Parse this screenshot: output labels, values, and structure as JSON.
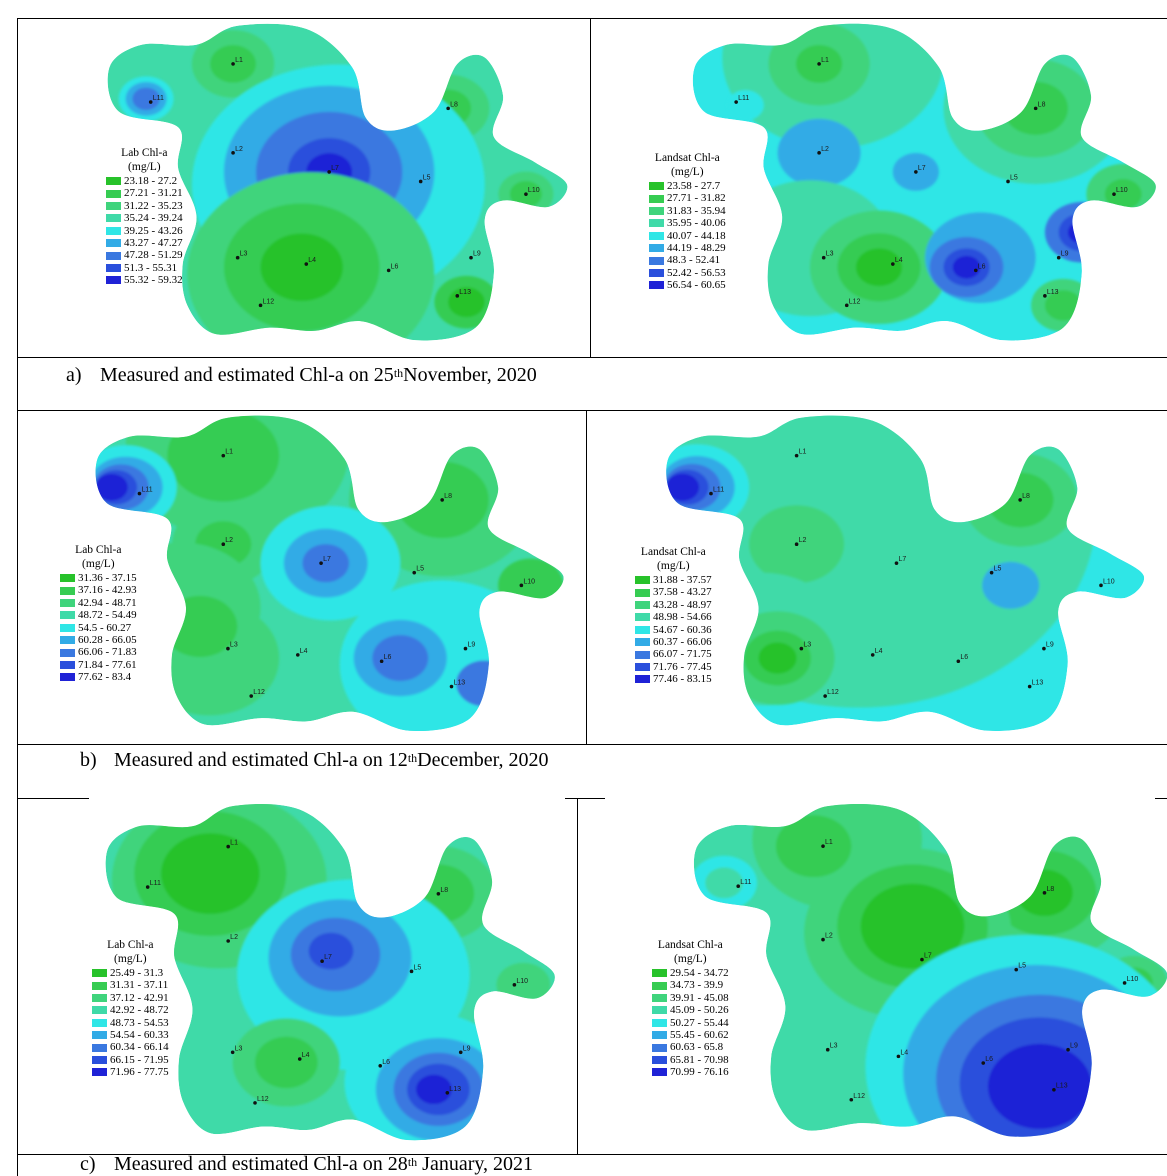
{
  "figure": {
    "captions": [
      {
        "marker": "a)",
        "pre": "Measured and estimated Chl-a  on 25",
        "sup": "th",
        "post": "November, 2020"
      },
      {
        "marker": "b)",
        "pre": "Measured and estimated Chl-a  on 12",
        "sup": "th",
        "post": "December, 2020"
      },
      {
        "marker": "c)",
        "pre": "Measured and estimated Chl-a  on 28",
        "sup": "th",
        "post": " January, 2021"
      }
    ],
    "station_labels": [
      "L1",
      "L2",
      "L3",
      "L4",
      "L5",
      "L6",
      "L7",
      "L8",
      "L9",
      "L10",
      "L11",
      "L12",
      "L13"
    ],
    "colors": [
      "#27c22a",
      "#36cc52",
      "#3fd47c",
      "#3fdaa8",
      "#2fe6e6",
      "#32abe6",
      "#3a78e0",
      "#2a4fdc",
      "#1f22d6"
    ],
    "panels": [
      {
        "id": "a-lab",
        "legend": {
          "title": "Lab Chl-a",
          "unit": "(mg/L)",
          "items": [
            "23.18 - 27.2",
            "27.21 - 31.21",
            "31.22 - 35.23",
            "35.24 - 39.24",
            "39.25 - 43.26",
            "43.27 - 47.27",
            "47.28 - 51.29",
            "51.3 - 55.31",
            "55.32 - 59.32"
          ]
        }
      },
      {
        "id": "a-landsat",
        "legend": {
          "title": "Landsat Chl-a",
          "unit": "(mg/L)",
          "items": [
            "23.58 - 27.7",
            "27.71 - 31.82",
            "31.83 - 35.94",
            "35.95 - 40.06",
            "40.07 - 44.18",
            "44.19 - 48.29",
            "48.3 - 52.41",
            "52.42 - 56.53",
            "56.54 - 60.65"
          ]
        }
      },
      {
        "id": "b-lab",
        "legend": {
          "title": "Lab Chl-a",
          "unit": "(mg/L)",
          "items": [
            "31.36 - 37.15",
            "37.16 - 42.93",
            "42.94 - 48.71",
            "48.72 - 54.49",
            "54.5 - 60.27",
            "60.28 - 66.05",
            "66.06 - 71.83",
            "71.84 - 77.61",
            "77.62 - 83.4"
          ]
        }
      },
      {
        "id": "b-landsat",
        "legend": {
          "title": "Landsat Chl-a",
          "unit": "(mg/L)",
          "items": [
            "31.88 - 37.57",
            "37.58 - 43.27",
            "43.28 - 48.97",
            "48.98 - 54.66",
            "54.67 - 60.36",
            "60.37 - 66.06",
            "66.07 - 71.75",
            "71.76 - 77.45",
            "77.46 - 83.15"
          ]
        }
      },
      {
        "id": "c-lab",
        "legend": {
          "title": "Lab Chl-a",
          "unit": "(mg/L)",
          "items": [
            "25.49 - 31.3",
            "31.31 - 37.11",
            "37.12 - 42.91",
            "42.92 - 48.72",
            "48.73 - 54.53",
            "54.54 - 60.33",
            "60.34 - 66.14",
            "66.15 - 71.95",
            "71.96 - 77.75"
          ]
        }
      },
      {
        "id": "c-landsat",
        "legend": {
          "title": "Landsat Chl-a",
          "unit": "(mg/L)",
          "items": [
            "29.54 - 34.72",
            "34.73 - 39.9",
            "39.91 - 45.08",
            "45.09 - 50.26",
            "50.27 - 55.44",
            "55.45 - 60.62",
            "60.63 - 65.8",
            "65.81 - 70.98",
            "70.99 - 76.16"
          ]
        }
      }
    ]
  }
}
